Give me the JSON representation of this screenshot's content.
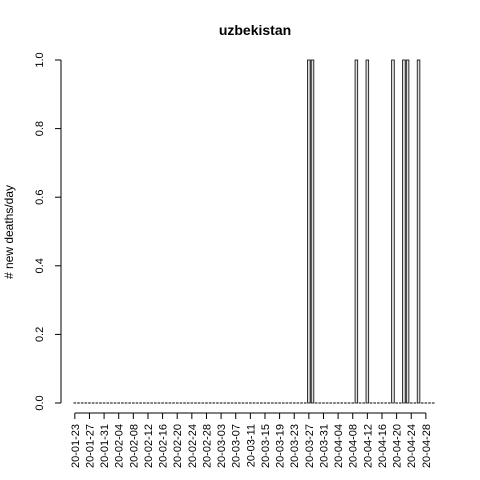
{
  "chart_data": {
    "type": "bar",
    "title": "uzbekistan",
    "xlabel": "",
    "ylabel": "# new deaths/day",
    "ylim": [
      0,
      1
    ],
    "yticks": [
      "0.0",
      "0.2",
      "0.4",
      "0.6",
      "0.8",
      "1.0"
    ],
    "start_date": "2020-01-23",
    "x_tick_labels": [
      "20-01-23",
      "20-01-27",
      "20-01-31",
      "20-02-04",
      "20-02-08",
      "20-02-12",
      "20-02-16",
      "20-02-20",
      "20-02-24",
      "20-02-28",
      "20-03-03",
      "20-03-07",
      "20-03-11",
      "20-03-15",
      "20-03-19",
      "20-03-23",
      "20-03-27",
      "20-03-31",
      "20-04-04",
      "20-04-08",
      "20-04-12",
      "20-04-16",
      "20-04-20",
      "20-04-24",
      "20-04-28"
    ],
    "values": [
      0,
      0,
      0,
      0,
      0,
      0,
      0,
      0,
      0,
      0,
      0,
      0,
      0,
      0,
      0,
      0,
      0,
      0,
      0,
      0,
      0,
      0,
      0,
      0,
      0,
      0,
      0,
      0,
      0,
      0,
      0,
      0,
      0,
      0,
      0,
      0,
      0,
      0,
      0,
      0,
      0,
      0,
      0,
      0,
      0,
      0,
      0,
      0,
      0,
      0,
      0,
      0,
      0,
      0,
      0,
      0,
      0,
      0,
      0,
      0,
      0,
      0,
      0,
      0,
      1,
      1,
      0,
      0,
      0,
      0,
      0,
      0,
      0,
      0,
      0,
      0,
      0,
      1,
      0,
      0,
      1,
      0,
      0,
      0,
      0,
      0,
      0,
      1,
      0,
      0,
      1,
      1,
      0,
      0,
      1,
      0,
      0,
      0,
      0
    ],
    "grid": false,
    "legend": "none"
  }
}
